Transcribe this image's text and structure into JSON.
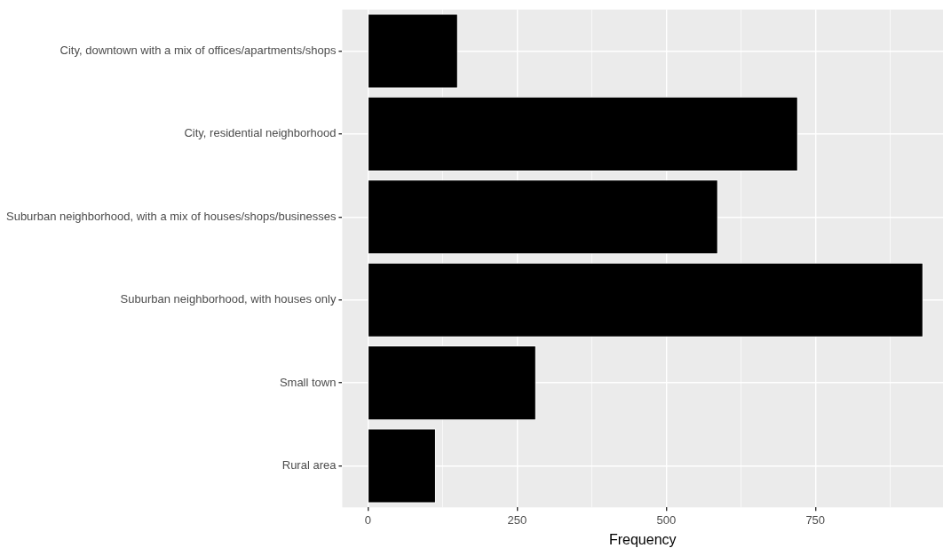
{
  "chart_data": {
    "type": "bar",
    "orientation": "horizontal",
    "xlabel": "Frequency",
    "categories": [
      "City, downtown with a mix of offices/apartments/shops",
      "City, residential neighborhood",
      "Suburban neighborhood, with a mix of houses/shops/businesses",
      "Suburban neighborhood, with houses only",
      "Small town",
      "Rural area"
    ],
    "values": [
      151,
      721,
      587,
      931,
      282,
      114
    ],
    "color": "#000000",
    "xlim": [
      -43,
      964
    ],
    "xticks": [
      0,
      {
        "value": 125,
        "label": null
      },
      250,
      {
        "value": 375,
        "label": null
      },
      500,
      {
        "value": 625,
        "label": null
      },
      750,
      {
        "value": 875,
        "label": null
      }
    ],
    "grid": true
  }
}
